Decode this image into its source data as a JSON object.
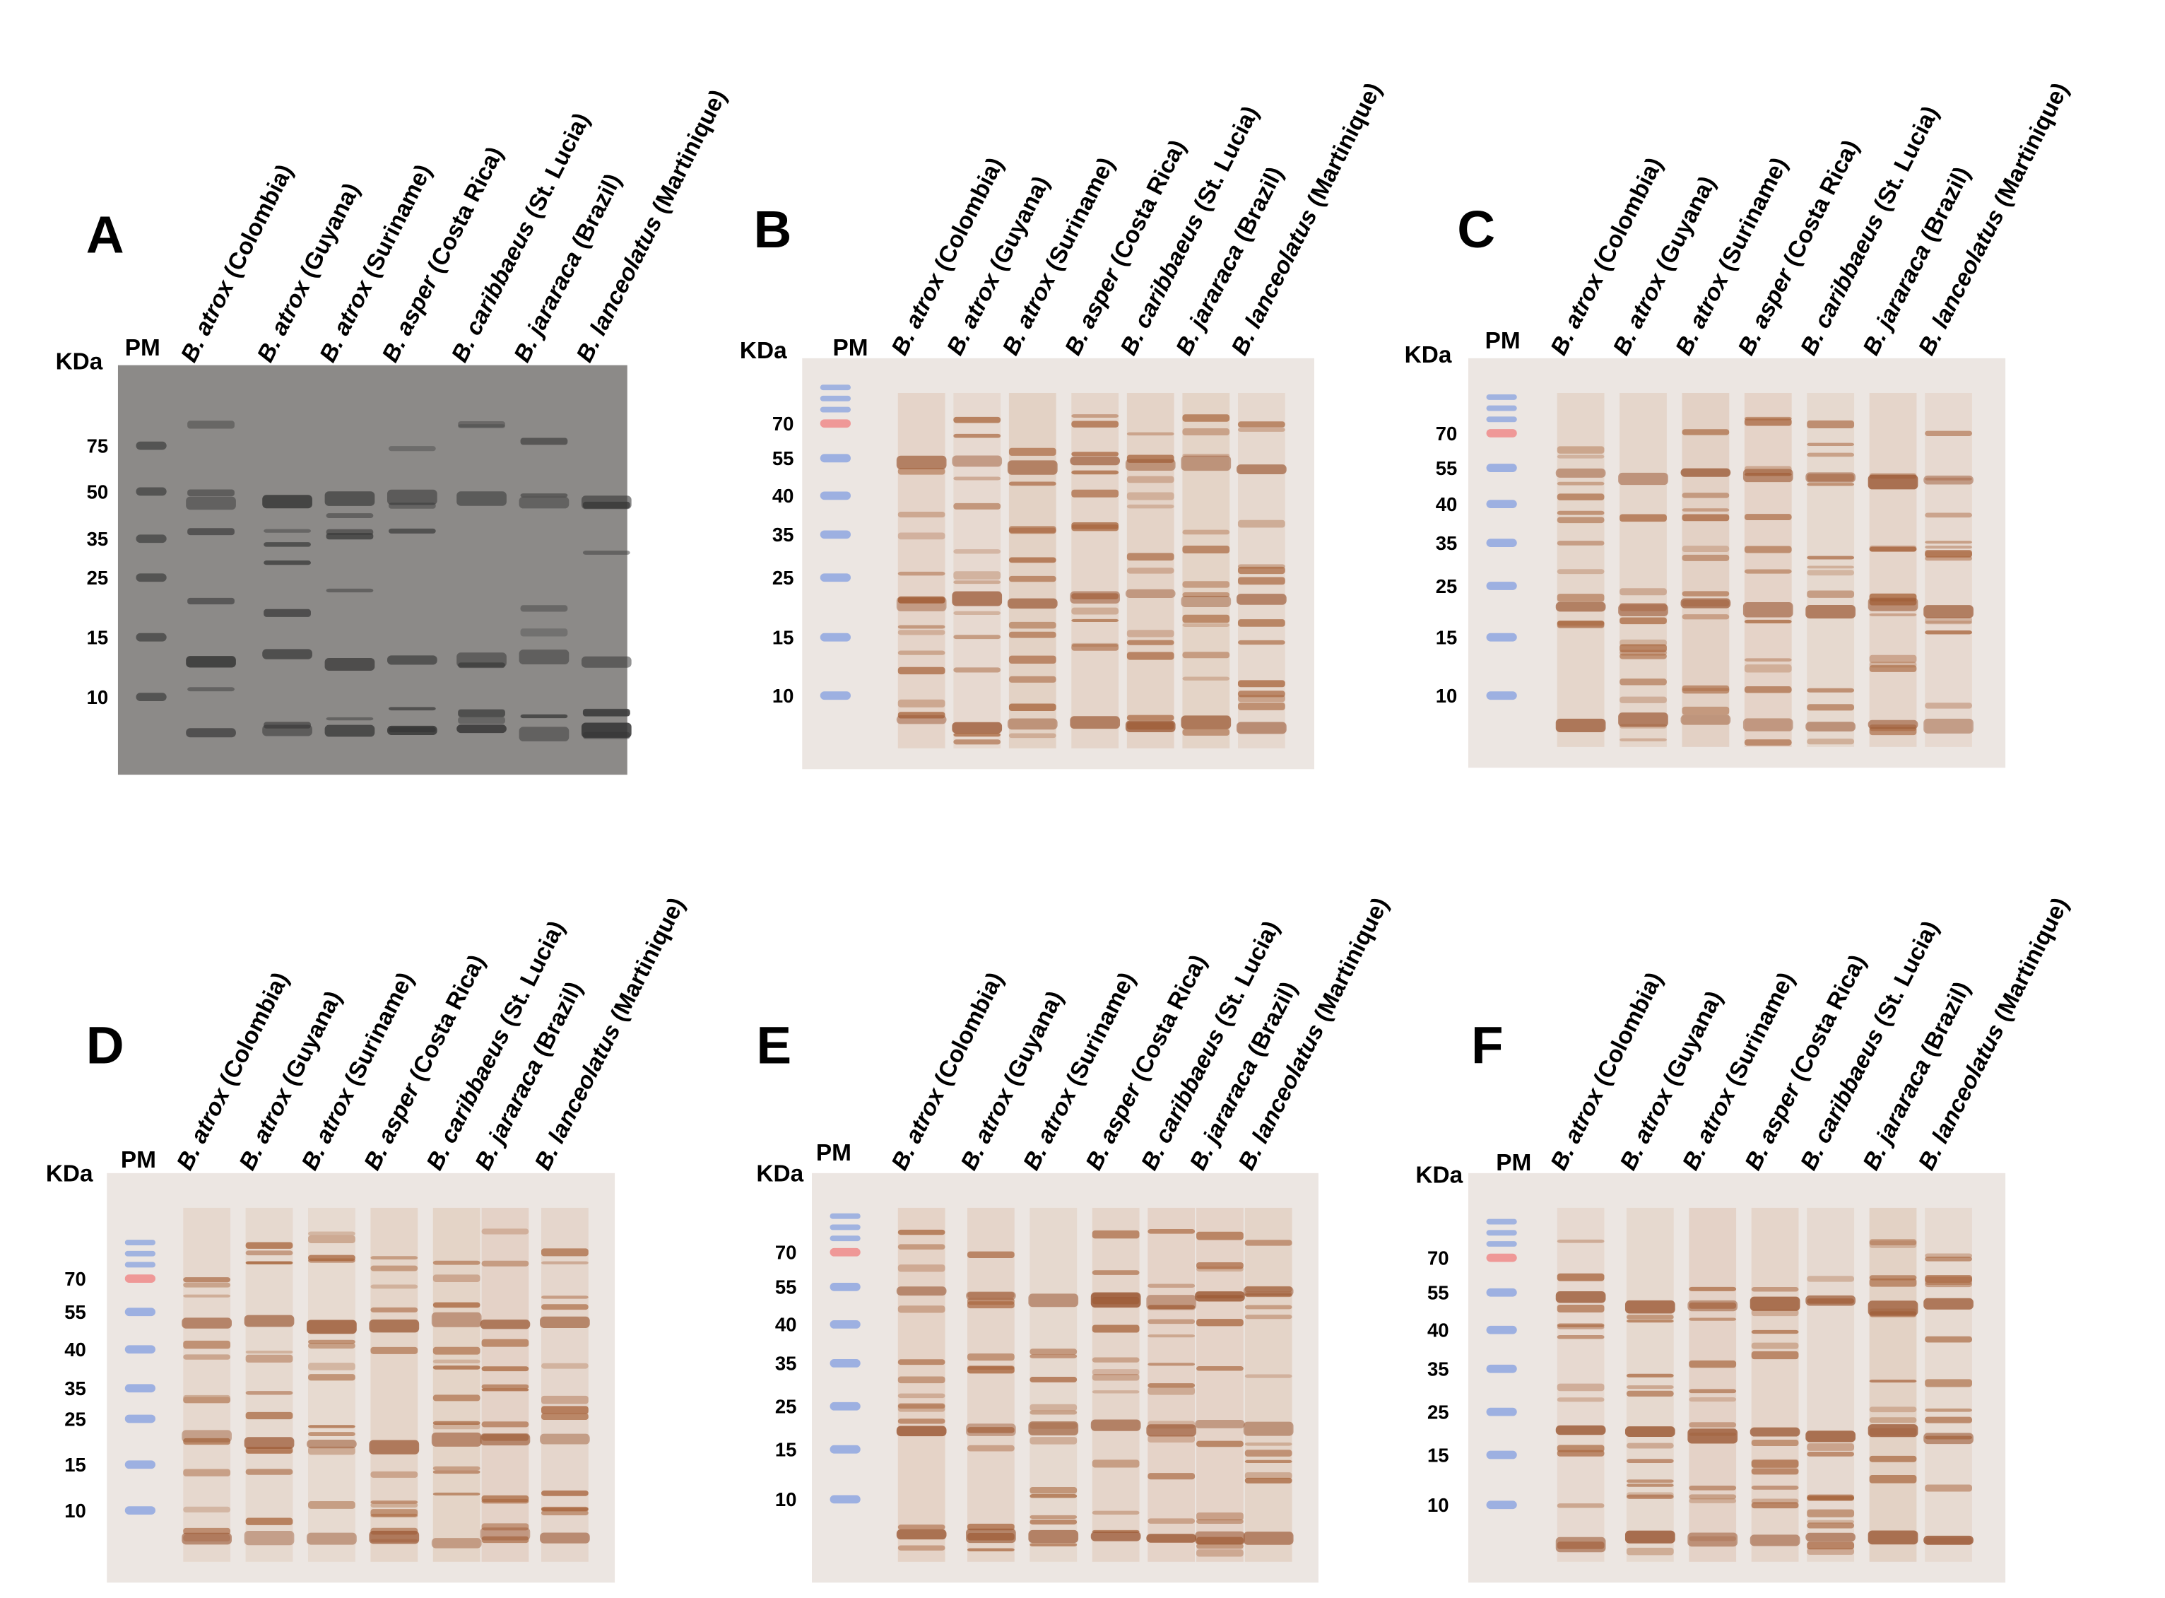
{
  "panels": [
    {
      "letter": "A",
      "unit": "KDa",
      "ladder": "PM",
      "markers": [
        75,
        50,
        35,
        25,
        15,
        10
      ],
      "lanes": [
        {
          "species": "B. atrox",
          "origin": "(Colombia)"
        },
        {
          "species": "B. atrox",
          "origin": "(Guyana)"
        },
        {
          "species": "B. atrox",
          "origin": "(Suriname)"
        },
        {
          "species": "B. asper",
          "origin": "(Costa Rica)"
        },
        {
          "species": "B. caribbaeus",
          "origin": "(St. Lucia)"
        },
        {
          "species": "B. jararaca",
          "origin": "(Brazil)"
        },
        {
          "species": "B. lanceolatus",
          "origin": "(Martinique)"
        }
      ]
    },
    {
      "letter": "B",
      "unit": "KDa",
      "ladder": "PM",
      "markers": [
        70,
        55,
        40,
        35,
        25,
        15,
        10
      ],
      "lanes": [
        {
          "species": "B. atrox",
          "origin": "(Colombia)"
        },
        {
          "species": "B. atrox",
          "origin": "(Guyana)"
        },
        {
          "species": "B. atrox",
          "origin": "(Suriname)"
        },
        {
          "species": "B. asper",
          "origin": "(Costa Rica)"
        },
        {
          "species": "B. caribbaeus",
          "origin": "(St. Lucia)"
        },
        {
          "species": "B. jararaca",
          "origin": "(Brazil)"
        },
        {
          "species": "B. lanceolatus",
          "origin": "(Martinique)"
        }
      ]
    },
    {
      "letter": "C",
      "unit": "KDa",
      "ladder": "PM",
      "markers": [
        70,
        55,
        40,
        35,
        25,
        15,
        10
      ],
      "lanes": [
        {
          "species": "B. atrox",
          "origin": "(Colombia)"
        },
        {
          "species": "B. atrox",
          "origin": "(Guyana)"
        },
        {
          "species": "B. atrox",
          "origin": "(Suriname)"
        },
        {
          "species": "B. asper",
          "origin": "(Costa Rica)"
        },
        {
          "species": "B. caribbaeus",
          "origin": "(St. Lucia)"
        },
        {
          "species": "B. jararaca",
          "origin": "(Brazil)"
        },
        {
          "species": "B. lanceolatus",
          "origin": "(Martinique)"
        }
      ]
    },
    {
      "letter": "D",
      "unit": "KDa",
      "ladder": "PM",
      "markers": [
        70,
        55,
        40,
        35,
        25,
        15,
        10
      ],
      "lanes": [
        {
          "species": "B. atrox",
          "origin": "(Colombia)"
        },
        {
          "species": "B. atrox",
          "origin": "(Guyana)"
        },
        {
          "species": "B. atrox",
          "origin": "(Suriname)"
        },
        {
          "species": "B. asper",
          "origin": "(Costa Rica)"
        },
        {
          "species": "B. caribbaeus",
          "origin": "(St. Lucia)"
        },
        {
          "species": "B. jararaca",
          "origin": "(Brazil)"
        },
        {
          "species": "B. lanceolatus",
          "origin": "(Martinique)"
        }
      ]
    },
    {
      "letter": "E",
      "unit": "KDa",
      "ladder": "PM",
      "markers": [
        70,
        55,
        40,
        35,
        25,
        15,
        10
      ],
      "lanes": [
        {
          "species": "B. atrox",
          "origin": "(Colombia)"
        },
        {
          "species": "B. atrox",
          "origin": "(Guyana)"
        },
        {
          "species": "B. atrox",
          "origin": "(Suriname)"
        },
        {
          "species": "B. asper",
          "origin": "(Costa Rica)"
        },
        {
          "species": "B. caribbaeus",
          "origin": "(St. Lucia)"
        },
        {
          "species": "B. jararaca",
          "origin": "(Brazil)"
        },
        {
          "species": "B. lanceolatus",
          "origin": "(Martinique)"
        }
      ]
    },
    {
      "letter": "F",
      "unit": "KDa",
      "ladder": "PM",
      "markers": [
        70,
        55,
        40,
        35,
        25,
        15,
        10
      ],
      "lanes": [
        {
          "species": "B. atrox",
          "origin": "(Colombia)"
        },
        {
          "species": "B. atrox",
          "origin": "(Guyana)"
        },
        {
          "species": "B. atrox",
          "origin": "(Suriname)"
        },
        {
          "species": "B. asper",
          "origin": "(Costa Rica)"
        },
        {
          "species": "B. caribbaeus",
          "origin": "(St. Lucia)"
        },
        {
          "species": "B. jararaca",
          "origin": "(Brazil)"
        },
        {
          "species": "B. lanceolatus",
          "origin": "(Martinique)"
        }
      ]
    }
  ]
}
